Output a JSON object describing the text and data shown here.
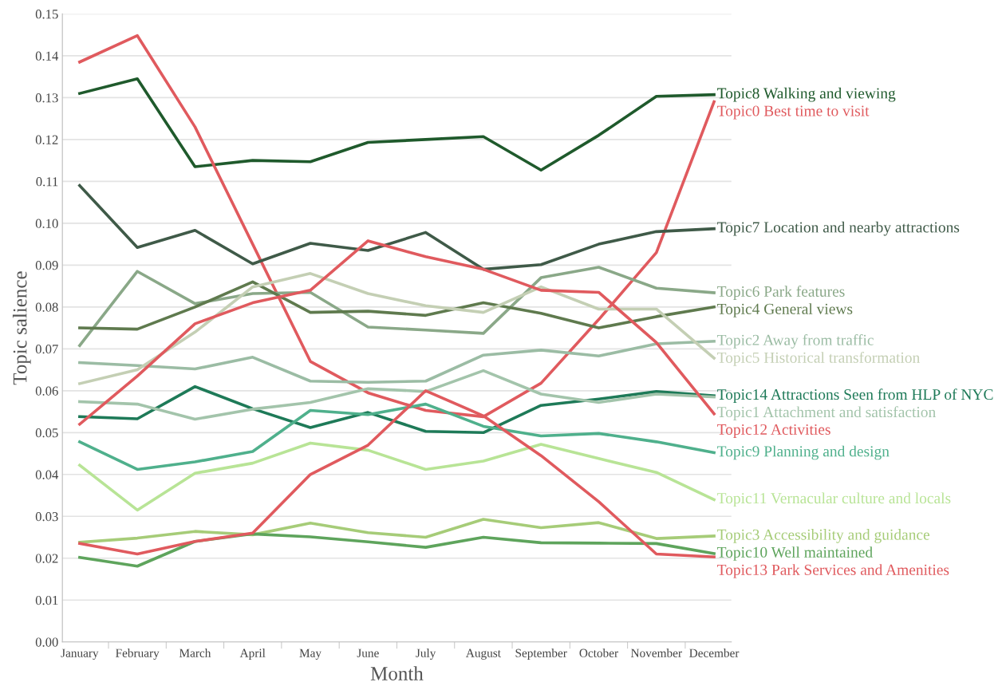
{
  "chart_data": {
    "type": "line",
    "xlabel": "Month",
    "ylabel": "Topic salience",
    "categories": [
      "January",
      "February",
      "March",
      "April",
      "May",
      "June",
      "July",
      "August",
      "September",
      "October",
      "November",
      "December"
    ],
    "ylim": [
      0,
      0.15
    ],
    "yticks": [
      {
        "value": 0,
        "label": "0.00"
      },
      {
        "value": 0.01,
        "label": "0.01"
      },
      {
        "value": 0.02,
        "label": "0.02"
      },
      {
        "value": 0.03,
        "label": "0.03"
      },
      {
        "value": 0.04,
        "label": "0.04"
      },
      {
        "value": 0.05,
        "label": "0.05"
      },
      {
        "value": 0.06,
        "label": "0.06"
      },
      {
        "value": 0.07,
        "label": "0.07"
      },
      {
        "value": 0.08,
        "label": "0.08"
      },
      {
        "value": 0.09,
        "label": "0.09"
      },
      {
        "value": 0.1,
        "label": "0.10"
      },
      {
        "value": 0.11,
        "label": "0.11"
      },
      {
        "value": 0.12,
        "label": "0.12"
      },
      {
        "value": 0.13,
        "label": "0.13"
      },
      {
        "value": 0.14,
        "label": "0.14"
      },
      {
        "value": 0.15,
        "label": "0.15"
      }
    ],
    "grid": "y",
    "marker": "none",
    "line_style": "solid",
    "series": [
      {
        "name": "Topic8 Walking and viewing",
        "color": "#1f5a2c",
        "values": [
          0.131,
          0.1345,
          0.1135,
          0.115,
          0.1147,
          0.1193,
          0.12,
          0.1207,
          0.1127,
          0.121,
          0.1303,
          0.1307
        ]
      },
      {
        "name": "Topic0 Best time to visit",
        "color": "#e05a5e",
        "values": [
          0.1385,
          0.1448,
          0.123,
          0.095,
          0.067,
          0.0595,
          0.0553,
          0.0538,
          0.0618,
          0.077,
          0.093,
          0.129
        ]
      },
      {
        "name": "Topic7 Location and nearby attractions",
        "color": "#3f5a48",
        "values": [
          0.109,
          0.0942,
          0.0983,
          0.0903,
          0.0952,
          0.0935,
          0.0978,
          0.089,
          0.0901,
          0.095,
          0.098,
          0.0987
        ]
      },
      {
        "name": "Topic6 Park features",
        "color": "#8aa888",
        "values": [
          0.0708,
          0.0885,
          0.0808,
          0.0832,
          0.0835,
          0.0752,
          0.0745,
          0.0737,
          0.087,
          0.0895,
          0.0845,
          0.0834
        ]
      },
      {
        "name": "Topic4 General views",
        "color": "#5f7a4e",
        "values": [
          0.075,
          0.0747,
          0.08,
          0.086,
          0.0787,
          0.079,
          0.078,
          0.081,
          0.0785,
          0.075,
          0.0777,
          0.08
        ]
      },
      {
        "name": "Topic2 Away from traffic",
        "color": "#9bbca4",
        "values": [
          0.0667,
          0.066,
          0.0652,
          0.068,
          0.0623,
          0.062,
          0.0623,
          0.0685,
          0.0697,
          0.0683,
          0.0712,
          0.0718
        ]
      },
      {
        "name": "Topic5 Historical transformation",
        "color": "#c4cfb4",
        "values": [
          0.0617,
          0.065,
          0.074,
          0.0848,
          0.088,
          0.0832,
          0.0803,
          0.0787,
          0.0848,
          0.0795,
          0.0795,
          0.0678
        ]
      },
      {
        "name": "Topic14 Attractions Seen from HLP of NYC",
        "color": "#1e7a58",
        "values": [
          0.0538,
          0.0533,
          0.061,
          0.0557,
          0.0512,
          0.0548,
          0.0503,
          0.05,
          0.0565,
          0.058,
          0.0598,
          0.0588
        ]
      },
      {
        "name": "Topic1 Attachment and satisfaction",
        "color": "#a3c4ab",
        "values": [
          0.0574,
          0.0568,
          0.0532,
          0.0556,
          0.0572,
          0.0605,
          0.0598,
          0.0648,
          0.0592,
          0.0572,
          0.0592,
          0.0585
        ]
      },
      {
        "name": "Topic12 Activities",
        "color": "#e05a5e",
        "values": [
          0.052,
          0.0635,
          0.076,
          0.081,
          0.084,
          0.0958,
          0.092,
          0.089,
          0.084,
          0.0835,
          0.0715,
          0.0545
        ]
      },
      {
        "name": "Topic9 Planning and design",
        "color": "#4fb08c",
        "values": [
          0.0478,
          0.0412,
          0.043,
          0.0455,
          0.0553,
          0.0543,
          0.0568,
          0.0515,
          0.0492,
          0.0498,
          0.0478,
          0.0452
        ]
      },
      {
        "name": "Topic11 Vernacular culture and locals",
        "color": "#b8e496",
        "values": [
          0.0422,
          0.0315,
          0.0403,
          0.0427,
          0.0475,
          0.0458,
          0.0412,
          0.0432,
          0.0472,
          0.0438,
          0.0405,
          0.034
        ]
      },
      {
        "name": "Topic3 Accessibility and guidance",
        "color": "#a6cc78",
        "values": [
          0.0238,
          0.0248,
          0.0264,
          0.0256,
          0.0284,
          0.0261,
          0.025,
          0.0293,
          0.0273,
          0.0285,
          0.0247,
          0.0253
        ]
      },
      {
        "name": "Topic10 Well maintained",
        "color": "#5ea45c",
        "values": [
          0.0202,
          0.0181,
          0.024,
          0.0258,
          0.0251,
          0.0239,
          0.0226,
          0.025,
          0.0237,
          0.0236,
          0.0235,
          0.0211
        ]
      },
      {
        "name": "Topic13 Park Services and Amenities",
        "color": "#e05a5e",
        "values": [
          0.0235,
          0.021,
          0.024,
          0.026,
          0.04,
          0.047,
          0.06,
          0.054,
          0.0445,
          0.0335,
          0.021,
          0.0203
        ]
      }
    ]
  }
}
